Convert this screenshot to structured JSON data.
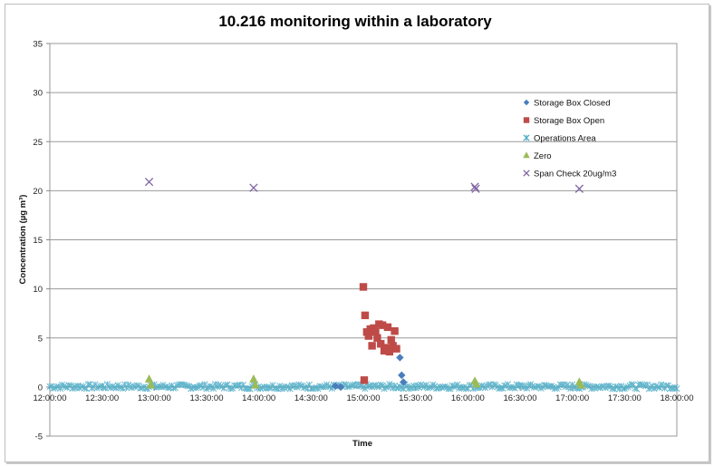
{
  "chart_data": {
    "type": "scatter",
    "title": "10.216 monitoring within a laboratory",
    "xlabel": "Time",
    "ylabel": "Concentration (µg m³)",
    "ylim": [
      -5,
      35
    ],
    "yticks": [
      -5,
      0,
      5,
      10,
      15,
      20,
      25,
      30,
      35
    ],
    "xlim": [
      "12:00:00",
      "18:00:00"
    ],
    "xticks": [
      "12:00:00",
      "12:30:00",
      "13:00:00",
      "13:30:00",
      "14:00:00",
      "14:30:00",
      "15:00:00",
      "15:30:00",
      "16:00:00",
      "16:30:00",
      "17:00:00",
      "17:30:00",
      "18:00:00"
    ],
    "grid": "horizontal",
    "legend_position": "right",
    "series": [
      {
        "name": "Storage Box Closed",
        "marker": "diamond",
        "color": "#4a7ebb",
        "points": [
          [
            "14:44:00",
            0.1
          ],
          [
            "14:47:00",
            0.0
          ],
          [
            "15:21:00",
            3.0
          ],
          [
            "15:22:00",
            1.2
          ],
          [
            "15:23:00",
            0.5
          ]
        ]
      },
      {
        "name": "Storage Box Open",
        "marker": "square",
        "color": "#be4b48",
        "points": [
          [
            "15:00:00",
            10.2
          ],
          [
            "15:01:00",
            7.3
          ],
          [
            "15:00:30",
            0.7
          ],
          [
            "15:02:00",
            5.6
          ],
          [
            "15:03:00",
            5.2
          ],
          [
            "15:04:00",
            5.9
          ],
          [
            "15:05:00",
            4.2
          ],
          [
            "15:06:00",
            6.0
          ],
          [
            "15:07:00",
            5.6
          ],
          [
            "15:08:00",
            5.0
          ],
          [
            "15:09:00",
            6.4
          ],
          [
            "15:10:00",
            4.4
          ],
          [
            "15:11:00",
            6.3
          ],
          [
            "15:12:00",
            3.7
          ],
          [
            "15:13:00",
            4.0
          ],
          [
            "15:14:00",
            6.1
          ],
          [
            "15:15:00",
            3.6
          ],
          [
            "15:16:00",
            4.8
          ],
          [
            "15:17:00",
            4.2
          ],
          [
            "15:18:00",
            5.7
          ],
          [
            "15:19:00",
            3.9
          ]
        ]
      },
      {
        "name": "Operations Area",
        "marker": "x-star",
        "color": "#4bacc6",
        "points": []
      },
      {
        "name": "Zero",
        "marker": "triangle",
        "color": "#9bbb59",
        "points": [
          [
            "12:57:00",
            0.8
          ],
          [
            "12:58:00",
            0.2
          ],
          [
            "13:57:00",
            0.8
          ],
          [
            "13:58:00",
            0.2
          ],
          [
            "16:04:00",
            0.6
          ],
          [
            "16:05:00",
            0.3
          ],
          [
            "17:04:00",
            0.5
          ],
          [
            "17:05:00",
            0.2
          ]
        ]
      },
      {
        "name": "Span Check 20ug/m3",
        "marker": "x",
        "color": "#8064a2",
        "points": [
          [
            "12:57:00",
            20.9
          ],
          [
            "13:57:00",
            20.3
          ],
          [
            "16:04:00",
            20.4
          ],
          [
            "16:04:30",
            20.2
          ],
          [
            "17:04:00",
            20.2
          ]
        ]
      }
    ]
  }
}
